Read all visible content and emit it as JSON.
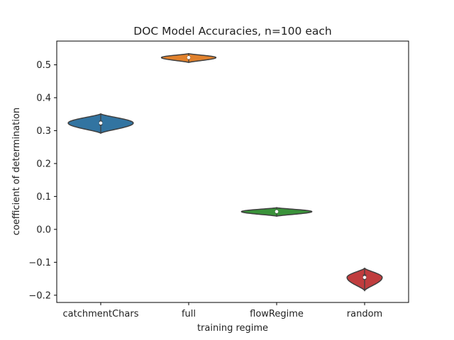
{
  "chart_data": {
    "type": "violin",
    "title": "DOC Model Accuracies, n=100 each",
    "xlabel": "training regime",
    "ylabel": "coefficient of determination",
    "categories": [
      "catchmentChars",
      "full",
      "flowRegime",
      "random"
    ],
    "ylim": [
      -0.222,
      0.572
    ],
    "yticks": [
      -0.2,
      -0.1,
      0.0,
      0.1,
      0.2,
      0.3,
      0.4,
      0.5
    ],
    "ytick_labels": [
      "−0.2",
      "−0.1",
      "0.0",
      "0.1",
      "0.2",
      "0.3",
      "0.4",
      "0.5"
    ],
    "grid": false,
    "series": [
      {
        "category": "catchmentChars",
        "color": "#3274a1",
        "min": 0.292,
        "max": 0.351,
        "median": 0.323,
        "q1": 0.316,
        "q3": 0.33,
        "spread": 0.37
      },
      {
        "category": "full",
        "color": "#e1812c",
        "min": 0.507,
        "max": 0.534,
        "median": 0.522,
        "q1": 0.518,
        "q3": 0.526,
        "spread": 0.31
      },
      {
        "category": "flowRegime",
        "color": "#3a923a",
        "min": 0.04,
        "max": 0.066,
        "median": 0.054,
        "q1": 0.05,
        "q3": 0.058,
        "spread": 0.4
      },
      {
        "category": "random",
        "color": "#c03d3e",
        "min": -0.186,
        "max": -0.118,
        "median": -0.146,
        "q1": -0.153,
        "q3": -0.137,
        "spread": 0.2
      }
    ]
  }
}
